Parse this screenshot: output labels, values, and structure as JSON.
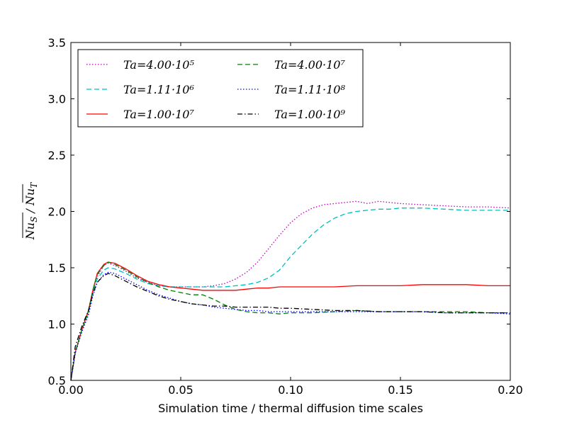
{
  "chart_data": {
    "type": "line",
    "title": "",
    "xlabel": "Simulation time / thermal diffusion time scales",
    "ylabel": "Nu_S / Nu_T (overlined)",
    "xlim": [
      0.0,
      0.2
    ],
    "ylim": [
      0.5,
      3.5
    ],
    "xticks": [
      "0.00",
      "0.05",
      "0.10",
      "0.15",
      "0.20"
    ],
    "yticks": [
      "0.5",
      "1.0",
      "1.5",
      "2.0",
      "2.5",
      "3.0",
      "3.5"
    ],
    "grid": false,
    "legend_position": "top-left",
    "series": [
      {
        "name": "Ta = 4.00·10^5",
        "legend_label": "Ta=4.00·10⁵",
        "color": "#bf00bf",
        "dash": "dotted",
        "x": [
          0,
          0.002,
          0.005,
          0.008,
          0.01,
          0.012,
          0.015,
          0.017,
          0.02,
          0.025,
          0.03,
          0.035,
          0.04,
          0.045,
          0.05,
          0.055,
          0.06,
          0.065,
          0.07,
          0.075,
          0.08,
          0.085,
          0.09,
          0.095,
          0.1,
          0.105,
          0.11,
          0.115,
          0.12,
          0.125,
          0.13,
          0.135,
          0.14,
          0.145,
          0.15,
          0.16,
          0.17,
          0.18,
          0.19,
          0.2
        ],
        "y": [
          0.5,
          0.75,
          0.95,
          1.1,
          1.3,
          1.42,
          1.52,
          1.54,
          1.52,
          1.47,
          1.41,
          1.37,
          1.34,
          1.33,
          1.33,
          1.33,
          1.33,
          1.34,
          1.36,
          1.4,
          1.46,
          1.55,
          1.67,
          1.79,
          1.9,
          1.98,
          2.03,
          2.06,
          2.07,
          2.08,
          2.09,
          2.07,
          2.09,
          2.08,
          2.07,
          2.06,
          2.05,
          2.04,
          2.04,
          2.03
        ]
      },
      {
        "name": "Ta = 1.11·10^6",
        "legend_label": "Ta=1.11·10⁶",
        "color": "#00bfbf",
        "dash": "dashed",
        "x": [
          0,
          0.002,
          0.005,
          0.008,
          0.01,
          0.012,
          0.015,
          0.017,
          0.02,
          0.025,
          0.03,
          0.035,
          0.04,
          0.045,
          0.05,
          0.055,
          0.06,
          0.065,
          0.07,
          0.075,
          0.08,
          0.085,
          0.09,
          0.095,
          0.1,
          0.105,
          0.11,
          0.115,
          0.12,
          0.125,
          0.13,
          0.135,
          0.14,
          0.145,
          0.15,
          0.16,
          0.17,
          0.18,
          0.19,
          0.2
        ],
        "y": [
          0.5,
          0.75,
          0.95,
          1.1,
          1.28,
          1.4,
          1.48,
          1.5,
          1.49,
          1.45,
          1.4,
          1.36,
          1.34,
          1.33,
          1.33,
          1.33,
          1.33,
          1.33,
          1.33,
          1.34,
          1.35,
          1.37,
          1.41,
          1.48,
          1.6,
          1.7,
          1.8,
          1.88,
          1.94,
          1.98,
          2.0,
          2.01,
          2.02,
          2.02,
          2.03,
          2.03,
          2.02,
          2.01,
          2.01,
          2.01
        ]
      },
      {
        "name": "Ta = 1.00·10^7",
        "legend_label": "Ta=1.00·10⁷",
        "color": "#ff0000",
        "dash": "solid",
        "x": [
          0,
          0.002,
          0.005,
          0.008,
          0.01,
          0.012,
          0.015,
          0.017,
          0.02,
          0.025,
          0.03,
          0.035,
          0.04,
          0.045,
          0.05,
          0.055,
          0.06,
          0.065,
          0.07,
          0.075,
          0.08,
          0.085,
          0.09,
          0.095,
          0.1,
          0.11,
          0.12,
          0.13,
          0.14,
          0.15,
          0.16,
          0.17,
          0.18,
          0.19,
          0.2
        ],
        "y": [
          0.5,
          0.75,
          0.95,
          1.12,
          1.3,
          1.45,
          1.53,
          1.55,
          1.54,
          1.49,
          1.43,
          1.38,
          1.35,
          1.33,
          1.32,
          1.31,
          1.3,
          1.3,
          1.3,
          1.3,
          1.31,
          1.32,
          1.32,
          1.33,
          1.33,
          1.33,
          1.33,
          1.34,
          1.34,
          1.34,
          1.35,
          1.35,
          1.35,
          1.34,
          1.34
        ]
      },
      {
        "name": "Ta = 4.00·10^7",
        "legend_label": "Ta=4.00·10⁷",
        "color": "#008000",
        "dash": "dashed",
        "x": [
          0,
          0.002,
          0.005,
          0.008,
          0.01,
          0.012,
          0.015,
          0.017,
          0.02,
          0.025,
          0.03,
          0.035,
          0.04,
          0.045,
          0.05,
          0.055,
          0.06,
          0.065,
          0.07,
          0.075,
          0.08,
          0.085,
          0.09,
          0.095,
          0.1,
          0.11,
          0.12,
          0.13,
          0.14,
          0.15,
          0.16,
          0.17,
          0.18,
          0.19,
          0.2
        ],
        "y": [
          0.5,
          0.75,
          0.95,
          1.12,
          1.3,
          1.44,
          1.52,
          1.55,
          1.53,
          1.48,
          1.42,
          1.37,
          1.33,
          1.3,
          1.28,
          1.26,
          1.26,
          1.22,
          1.17,
          1.13,
          1.11,
          1.1,
          1.1,
          1.09,
          1.1,
          1.1,
          1.11,
          1.12,
          1.11,
          1.11,
          1.11,
          1.11,
          1.11,
          1.1,
          1.1
        ]
      },
      {
        "name": "Ta = 1.11·10^8",
        "legend_label": "Ta=1.11·10⁸",
        "color": "#0000ff",
        "dash": "dotted",
        "x": [
          0,
          0.002,
          0.005,
          0.008,
          0.01,
          0.012,
          0.015,
          0.017,
          0.02,
          0.025,
          0.03,
          0.035,
          0.04,
          0.045,
          0.05,
          0.055,
          0.06,
          0.065,
          0.07,
          0.075,
          0.08,
          0.085,
          0.09,
          0.095,
          0.1,
          0.11,
          0.12,
          0.13,
          0.14,
          0.15,
          0.16,
          0.17,
          0.18,
          0.19,
          0.2
        ],
        "y": [
          0.5,
          0.74,
          0.93,
          1.08,
          1.25,
          1.37,
          1.44,
          1.46,
          1.45,
          1.4,
          1.35,
          1.3,
          1.26,
          1.23,
          1.2,
          1.18,
          1.17,
          1.15,
          1.14,
          1.13,
          1.12,
          1.12,
          1.11,
          1.11,
          1.11,
          1.11,
          1.11,
          1.11,
          1.11,
          1.11,
          1.11,
          1.1,
          1.1,
          1.1,
          1.09
        ]
      },
      {
        "name": "Ta = 1.00·10^9",
        "legend_label": "Ta=1.00·10⁹",
        "color": "#000000",
        "dash": "dashdot",
        "x": [
          0,
          0.002,
          0.005,
          0.008,
          0.01,
          0.012,
          0.015,
          0.017,
          0.02,
          0.025,
          0.03,
          0.035,
          0.04,
          0.045,
          0.05,
          0.055,
          0.06,
          0.065,
          0.07,
          0.075,
          0.08,
          0.085,
          0.09,
          0.095,
          0.1,
          0.11,
          0.12,
          0.13,
          0.14,
          0.15,
          0.16,
          0.17,
          0.18,
          0.19,
          0.2
        ],
        "y": [
          0.5,
          0.8,
          0.98,
          1.12,
          1.27,
          1.37,
          1.43,
          1.45,
          1.43,
          1.38,
          1.33,
          1.29,
          1.25,
          1.22,
          1.2,
          1.18,
          1.17,
          1.16,
          1.16,
          1.15,
          1.15,
          1.15,
          1.15,
          1.14,
          1.14,
          1.13,
          1.12,
          1.12,
          1.11,
          1.11,
          1.11,
          1.1,
          1.1,
          1.1,
          1.1
        ]
      }
    ]
  }
}
